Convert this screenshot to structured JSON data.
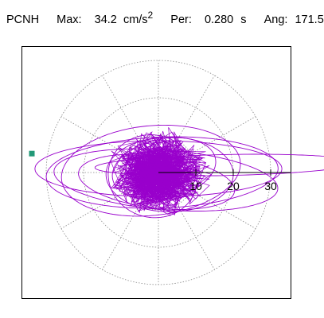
{
  "header": {
    "station": "PCNH",
    "max_label": "Max:",
    "max_value": "34.2",
    "max_unit": "cm/s",
    "max_unit_power": "2",
    "per_label": "Per:",
    "per_value": "0.280",
    "per_unit": "s",
    "ang_label": "Ang:",
    "ang_value": "171.5"
  },
  "chart_data": {
    "type": "scatter",
    "title": "",
    "polar": true,
    "rings": [
      10,
      20,
      30
    ],
    "tick_labels": [
      "10",
      "20",
      "30"
    ],
    "peak_marker_angle_deg": 171.5,
    "peak_marker_radius": 34.2,
    "grid": true,
    "colors": {
      "trace": "#9900cc",
      "marker": "#229977",
      "grid": "#888888"
    }
  }
}
